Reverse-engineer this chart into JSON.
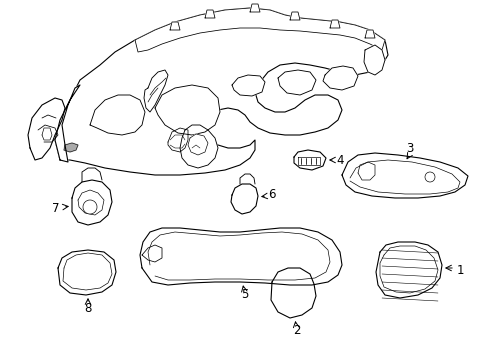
{
  "background_color": "#ffffff",
  "line_color": "#000000",
  "line_width": 0.8,
  "figure_width": 4.89,
  "figure_height": 3.6,
  "dpi": 100
}
